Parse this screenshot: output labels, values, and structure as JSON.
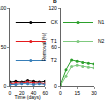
{
  "chart_data": [
    {
      "type": "line",
      "xlabel": "Time (days)",
      "x": [
        0,
        10,
        20,
        30,
        40,
        50,
        60
      ],
      "series": [
        {
          "name": "CK",
          "color": "#000000",
          "values": [
            5,
            6,
            5,
            7,
            6,
            5,
            6
          ]
        },
        {
          "name": "T1",
          "color": "#e41a1c",
          "values": [
            3,
            4,
            4,
            5,
            4,
            4,
            3
          ]
        },
        {
          "name": "T2",
          "color": "#377eb8",
          "values": [
            2,
            2,
            3,
            3,
            2,
            3,
            2
          ]
        }
      ],
      "xlim": [
        0,
        60
      ],
      "xticks": [
        0,
        20,
        40,
        60
      ],
      "ylim": [
        0,
        100
      ],
      "yticks": [
        0,
        50,
        100
      ],
      "legend": "upper left",
      "grid": false,
      "marker": "circle"
    },
    {
      "type": "line",
      "title": "b",
      "ylabel": "Removal (%)",
      "x": [
        0,
        5,
        10,
        15,
        20,
        25,
        30
      ],
      "series": [
        {
          "name": "N1",
          "color": "#2ca02c",
          "values": [
            2,
            25,
            40,
            38,
            36,
            35,
            34
          ]
        },
        {
          "name": "N2",
          "color": "#7fc97f",
          "values": [
            1,
            15,
            30,
            32,
            30,
            29,
            28
          ]
        }
      ],
      "xlim": [
        0,
        30
      ],
      "xticks": [
        0,
        15,
        30
      ],
      "ylim": [
        0,
        120
      ],
      "yticks": [
        0,
        60,
        120
      ],
      "legend": "upper left",
      "grid": false,
      "marker": "circle"
    }
  ]
}
